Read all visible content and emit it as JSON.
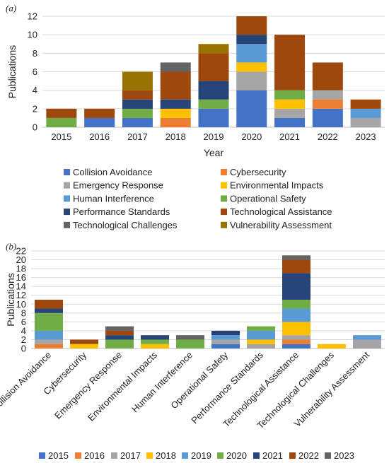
{
  "chart_data": [
    {
      "type": "bar",
      "stacked": true,
      "panel_label": "(a)",
      "categories": [
        "2015",
        "2016",
        "2017",
        "2018",
        "2019",
        "2020",
        "2021",
        "2022",
        "2023"
      ],
      "xlabel": "Year",
      "ylabel": "Publications",
      "ylim": [
        0,
        12
      ],
      "yticks": [
        0,
        2,
        4,
        6,
        8,
        10,
        12
      ],
      "grid": true,
      "legend_position": "bottom",
      "series": [
        {
          "name": "Collision Avoidance",
          "color": "#4472C4",
          "values": [
            0,
            1,
            1,
            0,
            2,
            4,
            1,
            2,
            0
          ]
        },
        {
          "name": "Cybersecurity",
          "color": "#ED7D31",
          "values": [
            0,
            0,
            0,
            1,
            0,
            0,
            0,
            1,
            0
          ]
        },
        {
          "name": "Emergency Response",
          "color": "#A5A5A5",
          "values": [
            0,
            0,
            0,
            0,
            0,
            2,
            1,
            1,
            1
          ]
        },
        {
          "name": "Environmental Impacts",
          "color": "#FFC000",
          "values": [
            0,
            0,
            0,
            1,
            0,
            1,
            1,
            0,
            0
          ]
        },
        {
          "name": "Human Interference",
          "color": "#5B9BD5",
          "values": [
            0,
            0,
            0,
            0,
            0,
            2,
            0,
            0,
            1
          ]
        },
        {
          "name": "Operational Safety",
          "color": "#70AD47",
          "values": [
            1,
            0,
            1,
            0,
            1,
            0,
            1,
            0,
            0
          ]
        },
        {
          "name": "Performance Standards",
          "color": "#264478",
          "values": [
            0,
            0,
            1,
            1,
            2,
            1,
            0,
            0,
            0
          ]
        },
        {
          "name": "Technological Assistance",
          "color": "#9E480E",
          "values": [
            1,
            1,
            1,
            3,
            3,
            2,
            6,
            3,
            1
          ]
        },
        {
          "name": "Technological Challenges",
          "color": "#636363",
          "values": [
            0,
            0,
            0,
            1,
            0,
            0,
            0,
            0,
            0
          ]
        },
        {
          "name": "Vulnerability Assessment",
          "color": "#997300",
          "values": [
            0,
            0,
            2,
            0,
            1,
            0,
            0,
            0,
            0
          ]
        }
      ]
    },
    {
      "type": "bar",
      "stacked": true,
      "panel_label": "(b)",
      "categories": [
        "Collision Avoidance",
        "Cybersecurity",
        "Emergency Response",
        "Environmental Impacts",
        "Human Interference",
        "Operational Safety",
        "Performance Standards",
        "Technological Assistance",
        "Technological Challenges",
        "Vulnerability Assessment"
      ],
      "xlabel": "",
      "ylabel": "Publications",
      "ylim": [
        0,
        22
      ],
      "yticks": [
        0,
        2,
        4,
        6,
        8,
        10,
        12,
        14,
        16,
        18,
        20,
        22
      ],
      "grid": true,
      "legend_position": "bottom",
      "series": [
        {
          "name": "2015",
          "color": "#4472C4",
          "values": [
            0,
            0,
            0,
            0,
            0,
            1,
            0,
            1,
            0,
            0
          ]
        },
        {
          "name": "2016",
          "color": "#ED7D31",
          "values": [
            1,
            0,
            0,
            0,
            0,
            0,
            0,
            1,
            0,
            0
          ]
        },
        {
          "name": "2017",
          "color": "#A5A5A5",
          "values": [
            1,
            0,
            0,
            0,
            0,
            1,
            1,
            1,
            0,
            2
          ]
        },
        {
          "name": "2018",
          "color": "#FFC000",
          "values": [
            0,
            1,
            0,
            1,
            0,
            0,
            1,
            3,
            1,
            0
          ]
        },
        {
          "name": "2019",
          "color": "#5B9BD5",
          "values": [
            2,
            0,
            0,
            0,
            0,
            1,
            2,
            3,
            0,
            1
          ]
        },
        {
          "name": "2020",
          "color": "#70AD47",
          "values": [
            4,
            0,
            2,
            1,
            2,
            0,
            1,
            2,
            0,
            0
          ]
        },
        {
          "name": "2021",
          "color": "#264478",
          "values": [
            1,
            0,
            1,
            1,
            0,
            1,
            0,
            6,
            0,
            0
          ]
        },
        {
          "name": "2022",
          "color": "#9E480E",
          "values": [
            2,
            1,
            1,
            0,
            0,
            0,
            0,
            3,
            0,
            0
          ]
        },
        {
          "name": "2023",
          "color": "#636363",
          "values": [
            0,
            0,
            1,
            0,
            1,
            0,
            0,
            1,
            0,
            0
          ]
        }
      ]
    }
  ]
}
